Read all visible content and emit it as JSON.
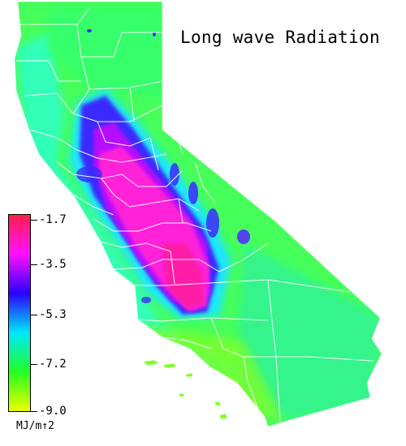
{
  "title": "Long wave Radiation",
  "legend": {
    "unit": "MJ/m↑2",
    "ticks": [
      "-1.7",
      "-3.5",
      "-5.3",
      "-7.2",
      "-9.0"
    ],
    "colors": [
      "#ff1f4d",
      "#ff10ff",
      "#2a00ff",
      "#00e8ff",
      "#22ff22",
      "#eeff00"
    ]
  },
  "colors": {
    "background_high": "#ff1aa6",
    "mid_low": "#3a55ff",
    "low": "#4dff66",
    "county_lines": "#ffffff"
  }
}
